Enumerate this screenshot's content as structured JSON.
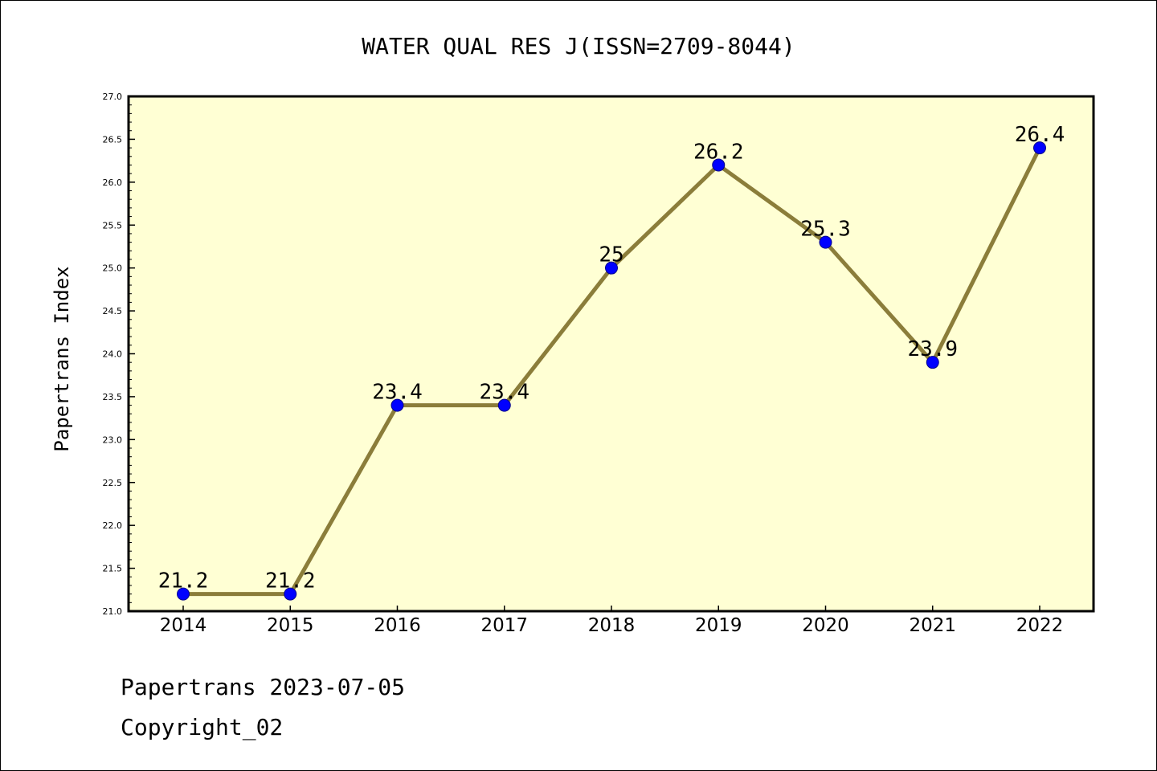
{
  "chart_data": {
    "type": "line",
    "title": "WATER QUAL RES J(ISSN=2709-8044)",
    "xlabel": "",
    "ylabel": "Papertrans Index",
    "categories": [
      "2014",
      "2015",
      "2016",
      "2017",
      "2018",
      "2019",
      "2020",
      "2021",
      "2022"
    ],
    "series": [
      {
        "values": [
          21.2,
          21.2,
          23.4,
          23.4,
          25,
          26.2,
          25.3,
          23.9,
          26.4
        ],
        "data_labels": [
          "21.2",
          "21.2",
          "23.4",
          "23.4",
          "25",
          "26.2",
          "25.3",
          "23.9",
          "26.4"
        ],
        "line_color": "#8b7d3a",
        "marker_color": "#0000ff"
      }
    ],
    "ylim": [
      21.0,
      27.0
    ],
    "yticks": [
      "21.0",
      "21.5",
      "22.0",
      "22.5",
      "23.0",
      "23.5",
      "24.0",
      "24.5",
      "25.0",
      "25.5",
      "26.0",
      "26.5",
      "27.0"
    ],
    "grid": false,
    "plot_background": "#ffffd4"
  },
  "footer": {
    "line1": "Papertrans 2023-07-05",
    "line2": "Copyright_02"
  }
}
